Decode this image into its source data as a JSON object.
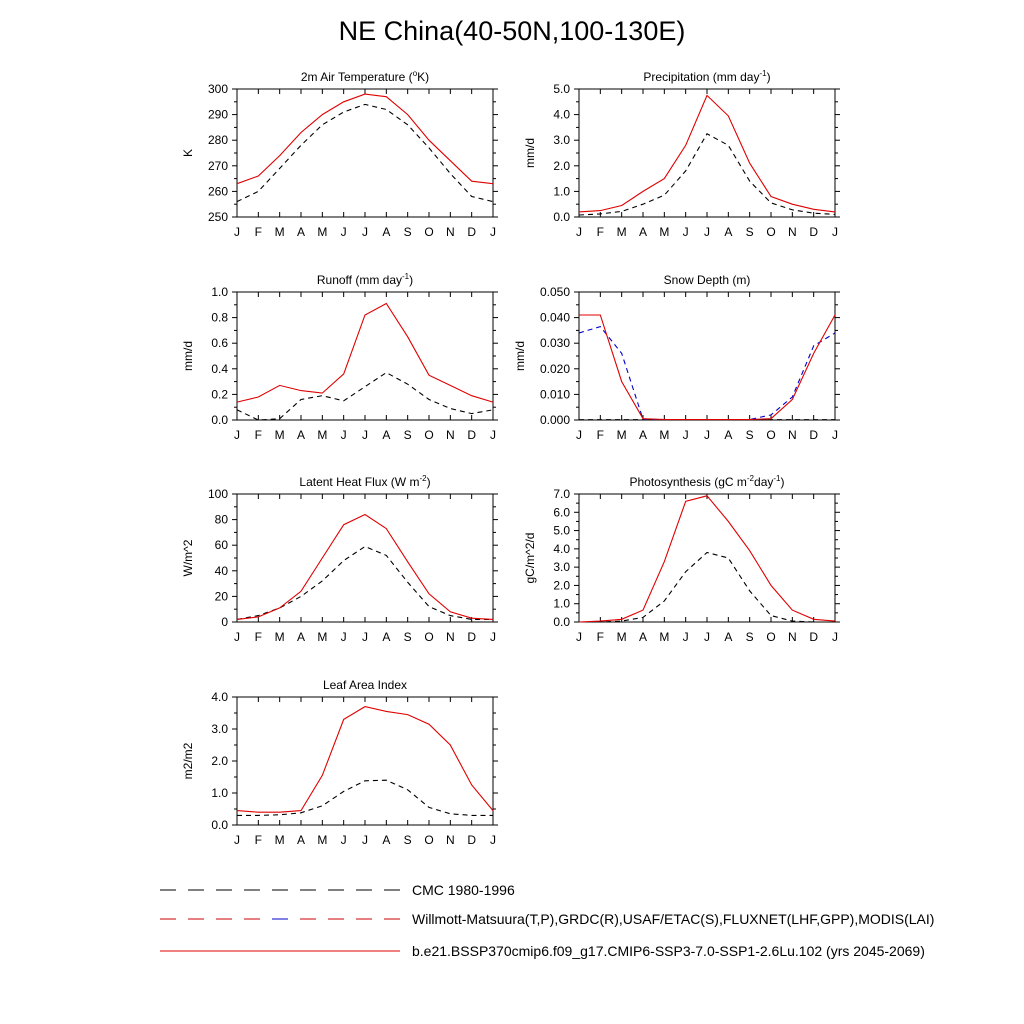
{
  "figure": {
    "title": "NE China(40-50N,100-130E)",
    "months": [
      "J",
      "F",
      "M",
      "A",
      "M",
      "J",
      "J",
      "A",
      "S",
      "O",
      "N",
      "D",
      "J"
    ]
  },
  "legend": [
    {
      "label": "CMC 1980-1996",
      "color": "#000000",
      "dash": "dashed"
    },
    {
      "label": "Willmott-Matsuura(T,P),GRDC(R),USAF/ETAC(S),FLUXNET(LHF,GPP),MODIS(LAI)",
      "color": "#cc0000",
      "dash": "dashed",
      "alt_color": "#0000cc"
    },
    {
      "label": "b.e21.BSSP370cmip6.f09_g17.CMIP6-SSP3-7.0-SSP1-2.6Lu.102 (yrs 2045-2069)",
      "color": "#e00000",
      "dash": "solid"
    }
  ],
  "chart_data": [
    {
      "type": "line",
      "title": "2m Air Temperature (",
      "title_sup": "o",
      "title_after": "K)",
      "ylabel": "K",
      "ylim": [
        250,
        300
      ],
      "yticks": [
        250,
        260,
        270,
        280,
        290,
        300
      ],
      "ytick_labels": [
        "250",
        "260",
        "270",
        "280",
        "290",
        "300"
      ],
      "series": [
        {
          "style": "model",
          "color": "#e00000",
          "dash": "solid",
          "values": [
            263,
            266,
            274,
            283,
            290,
            295,
            298,
            297,
            290,
            280,
            272,
            264,
            263
          ]
        },
        {
          "style": "obs",
          "color": "#000000",
          "dash": "dashed",
          "values": [
            256,
            260,
            269,
            278,
            286,
            291,
            294,
            292,
            286,
            277,
            267,
            258,
            256
          ]
        }
      ]
    },
    {
      "type": "line",
      "title": "Precipitation (mm day",
      "title_sup": "-1",
      "title_after": ")",
      "ylabel": "mm/d",
      "ylim": [
        0,
        5
      ],
      "yticks": [
        0,
        1,
        2,
        3,
        4,
        5
      ],
      "ytick_labels": [
        "0.0",
        "1.0",
        "2.0",
        "3.0",
        "4.0",
        "5.0"
      ],
      "series": [
        {
          "style": "model",
          "color": "#e00000",
          "dash": "solid",
          "values": [
            0.2,
            0.25,
            0.45,
            1.0,
            1.5,
            2.8,
            4.75,
            3.95,
            2.1,
            0.8,
            0.5,
            0.3,
            0.2
          ]
        },
        {
          "style": "obs",
          "color": "#000000",
          "dash": "dashed",
          "values": [
            0.08,
            0.12,
            0.22,
            0.5,
            0.85,
            1.8,
            3.25,
            2.8,
            1.4,
            0.55,
            0.28,
            0.15,
            0.1
          ]
        }
      ]
    },
    {
      "type": "line",
      "title": "Runoff (mm day",
      "title_sup": "-1",
      "title_after": ")",
      "ylabel": "mm/d",
      "ylim": [
        0,
        1
      ],
      "yticks": [
        0,
        0.2,
        0.4,
        0.6,
        0.8,
        1.0
      ],
      "ytick_labels": [
        "0.0",
        "0.2",
        "0.4",
        "0.6",
        "0.8",
        "1.0"
      ],
      "series": [
        {
          "style": "model",
          "color": "#e00000",
          "dash": "solid",
          "values": [
            0.14,
            0.18,
            0.27,
            0.23,
            0.21,
            0.36,
            0.82,
            0.91,
            0.65,
            0.35,
            0.27,
            0.19,
            0.14
          ]
        },
        {
          "style": "obs",
          "color": "#000000",
          "dash": "dashed",
          "values": [
            0.08,
            0.0,
            0.01,
            0.16,
            0.19,
            0.15,
            0.26,
            0.37,
            0.28,
            0.16,
            0.09,
            0.05,
            0.08
          ]
        }
      ]
    },
    {
      "type": "line",
      "title": "Snow Depth (m)",
      "title_sup": "",
      "title_after": "",
      "ylabel": "mm/d",
      "ylim": [
        0,
        0.05
      ],
      "yticks": [
        0,
        0.01,
        0.02,
        0.03,
        0.04,
        0.05
      ],
      "ytick_labels": [
        "0.000",
        "0.010",
        "0.020",
        "0.030",
        "0.040",
        "0.050"
      ],
      "series": [
        {
          "style": "model",
          "color": "#e00000",
          "dash": "solid",
          "values": [
            0.041,
            0.041,
            0.015,
            0.0005,
            0.0002,
            0.0002,
            0.0002,
            0.0002,
            0.0002,
            0.0005,
            0.008,
            0.026,
            0.041
          ]
        },
        {
          "style": "obs2",
          "color": "#0000cc",
          "dash": "dashed",
          "values": [
            0.034,
            0.0365,
            0.026,
            0.0003,
            0.0002,
            0.0002,
            0.0002,
            0.0002,
            0.0002,
            0.002,
            0.009,
            0.029,
            0.034
          ]
        },
        {
          "style": "obs",
          "color": "#000000",
          "dash": "dashed",
          "values": [
            0.0001,
            0.0001,
            0.0001,
            0.0001,
            0.0001,
            0.0001,
            0.0001,
            0.0001,
            0.0001,
            0.0001,
            0.0001,
            0.0001,
            0.0001
          ]
        }
      ]
    },
    {
      "type": "line",
      "title": "Latent Heat Flux (W m",
      "title_sup": "-2",
      "title_after": ")",
      "ylabel": "W/m^2",
      "ylim": [
        0,
        100
      ],
      "yticks": [
        0,
        20,
        40,
        60,
        80,
        100
      ],
      "ytick_labels": [
        "0",
        "20",
        "40",
        "60",
        "80",
        "100"
      ],
      "series": [
        {
          "style": "model",
          "color": "#e00000",
          "dash": "solid",
          "values": [
            2,
            4,
            11,
            24,
            50,
            76,
            84,
            73,
            47,
            22,
            8,
            3,
            2
          ]
        },
        {
          "style": "obs",
          "color": "#000000",
          "dash": "dashed",
          "values": [
            2,
            5,
            11,
            20,
            32,
            48,
            59,
            52,
            31,
            12,
            5,
            2,
            2
          ]
        }
      ]
    },
    {
      "type": "line",
      "title": "Photosynthesis (gC m",
      "title_sup": "-2",
      "title_after": "day",
      "title_sup2": "-1",
      "title_after2": ")",
      "ylabel": "gC/m^2/d",
      "ylim": [
        0,
        7
      ],
      "yticks": [
        0,
        1,
        2,
        3,
        4,
        5,
        6,
        7
      ],
      "ytick_labels": [
        "0.0",
        "1.0",
        "2.0",
        "3.0",
        "4.0",
        "5.0",
        "6.0",
        "7.0"
      ],
      "series": [
        {
          "style": "model",
          "color": "#e00000",
          "dash": "solid",
          "values": [
            0.0,
            0.05,
            0.15,
            0.65,
            3.3,
            6.6,
            6.9,
            5.5,
            3.9,
            2.0,
            0.65,
            0.15,
            0.05
          ]
        },
        {
          "style": "obs",
          "color": "#000000",
          "dash": "dashed",
          "values": [
            0.0,
            0.0,
            0.05,
            0.25,
            1.15,
            2.75,
            3.8,
            3.5,
            1.7,
            0.35,
            0.05,
            0.0,
            0.0
          ]
        }
      ]
    },
    {
      "type": "line",
      "title": "Leaf Area Index",
      "title_sup": "",
      "title_after": "",
      "ylabel": "m2/m2",
      "ylim": [
        0,
        4
      ],
      "yticks": [
        0,
        1,
        2,
        3,
        4
      ],
      "ytick_labels": [
        "0.0",
        "1.0",
        "2.0",
        "3.0",
        "4.0"
      ],
      "series": [
        {
          "style": "model",
          "color": "#e00000",
          "dash": "solid",
          "values": [
            0.45,
            0.4,
            0.4,
            0.45,
            1.55,
            3.3,
            3.7,
            3.55,
            3.45,
            3.15,
            2.5,
            1.25,
            0.45
          ]
        },
        {
          "style": "obs",
          "color": "#000000",
          "dash": "dashed",
          "values": [
            0.3,
            0.3,
            0.32,
            0.38,
            0.6,
            1.05,
            1.38,
            1.4,
            1.1,
            0.55,
            0.35,
            0.3,
            0.3
          ]
        }
      ]
    }
  ]
}
